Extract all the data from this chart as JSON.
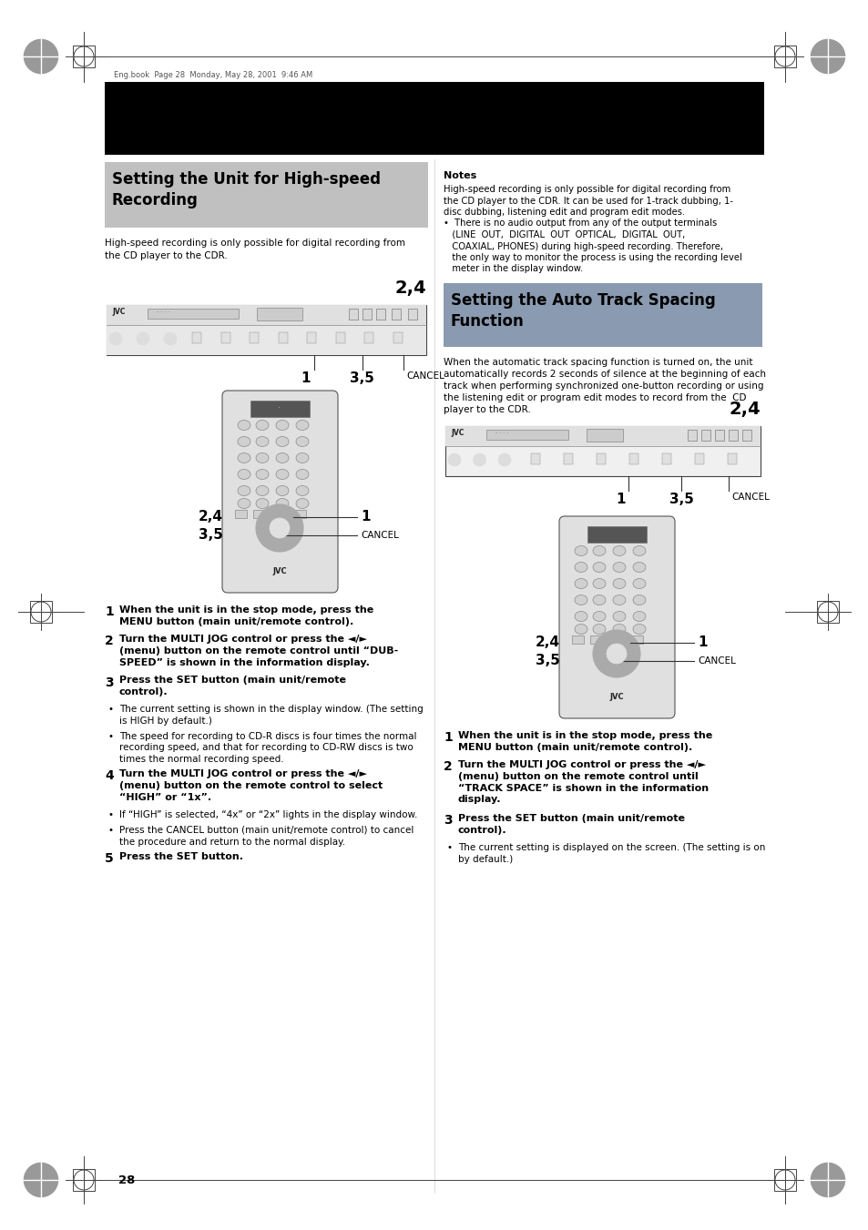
{
  "page_bg": "#ffffff",
  "header_text": "Eng.book  Page 28  Monday, May 28, 2001  9:46 AM",
  "page_number": "28",
  "section1_title": "Setting the Unit for High-speed\nRecording",
  "section1_bg": "#c0c0c0",
  "section2_title": "Setting the Auto Track Spacing\nFunction",
  "section2_bg": "#8a9ab0",
  "left_intro": "High-speed recording is only possible for digital recording from\nthe CD player to the CDR.",
  "notes_title": "Notes",
  "notes_lines": [
    "High-speed recording is only possible for digital recording from",
    "the CD player to the CDR. It can be used for 1-track dubbing, 1-",
    "disc dubbing, listening edit and program edit modes.",
    "•  There is no audio output from any of the output terminals",
    "   (LINE  OUT,  DIGITAL  OUT  OPTICAL,  DIGITAL  OUT,",
    "   COAXIAL, PHONES) during high-speed recording. Therefore,",
    "   the only way to monitor the process is using the recording level",
    "   meter in the display window."
  ],
  "right_intro_lines": [
    "When the automatic track spacing function is turned on, the unit",
    "automatically records 2 seconds of silence at the beginning of each",
    "track when performing synchronized one-button recording or using",
    "the listening edit or program edit modes to record from the  CD",
    "player to the CDR."
  ],
  "left_steps": [
    {
      "num": "1",
      "bold": true,
      "text": "When the unit is in the stop mode, press the\nMENU button (main unit/remote control)."
    },
    {
      "num": "2",
      "bold": true,
      "text": "Turn the MULTI JOG control or press the ◄/►\n(menu) button on the remote control until “DUB-\nSPEED” is shown in the information display."
    },
    {
      "num": "3",
      "bold": true,
      "text": "Press the SET button (main unit/remote\ncontrol)."
    },
    {
      "num": "•",
      "bold": false,
      "text": "The current setting is shown in the display window. (The setting\nis HIGH by default.)"
    },
    {
      "num": "•",
      "bold": false,
      "text": "The speed for recording to CD-R discs is four times the normal\nrecording speed, and that for recording to CD-RW discs is two\ntimes the normal recording speed."
    },
    {
      "num": "4",
      "bold": true,
      "text": "Turn the MULTI JOG control or press the ◄/►\n(menu) button on the remote control to select\n“HIGH” or “1x”."
    },
    {
      "num": "•",
      "bold": false,
      "text": "If “HIGH” is selected, “4x” or “2x” lights in the display window."
    },
    {
      "num": "•",
      "bold": false,
      "text": "Press the CANCEL button (main unit/remote control) to cancel\nthe procedure and return to the normal display."
    },
    {
      "num": "5",
      "bold": true,
      "text": "Press the SET button."
    }
  ],
  "right_steps": [
    {
      "num": "1",
      "bold": true,
      "text": "When the unit is in the stop mode, press the\nMENU button (main unit/remote control)."
    },
    {
      "num": "2",
      "bold": true,
      "text": "Turn the MULTI JOG control or press the ◄/►\n(menu) button on the remote control until\n“TRACK SPACE” is shown in the information\ndisplay."
    },
    {
      "num": "3",
      "bold": true,
      "text": "Press the SET button (main unit/remote\ncontrol)."
    },
    {
      "num": "•",
      "bold": false,
      "text": "The current setting is displayed on the screen. (The setting is on\nby default.)"
    }
  ]
}
